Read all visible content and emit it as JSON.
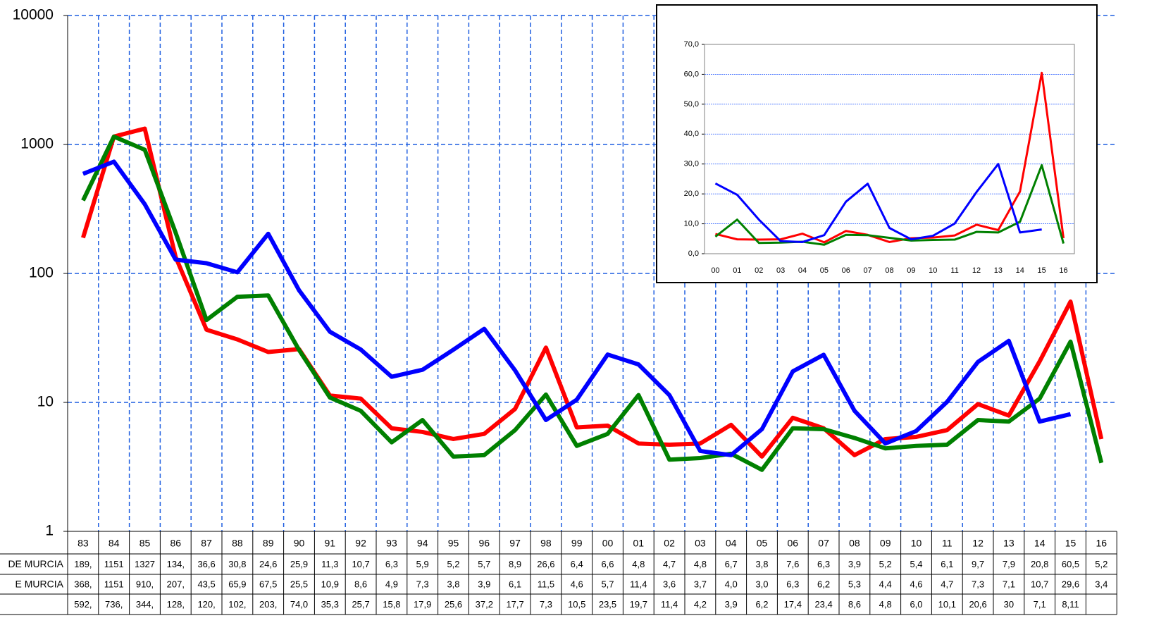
{
  "chart_data": [
    {
      "type": "line",
      "ylog": true,
      "ylim": [
        1,
        10000
      ],
      "yticks": [
        1,
        10,
        100,
        1000,
        10000
      ],
      "grid": true,
      "categories": [
        "83",
        "84",
        "85",
        "86",
        "87",
        "88",
        "89",
        "90",
        "91",
        "92",
        "93",
        "94",
        "95",
        "96",
        "97",
        "98",
        "99",
        "00",
        "01",
        "02",
        "03",
        "04",
        "05",
        "06",
        "07",
        "08",
        "09",
        "10",
        "11",
        "12",
        "13",
        "14",
        "15",
        "16"
      ],
      "series": [
        {
          "name": "DE MURCIA",
          "color": "#ff0000",
          "values": [
            189,
            1151,
            1327,
            134,
            36.6,
            30.8,
            24.6,
            25.9,
            11.3,
            10.7,
            6.3,
            5.9,
            5.2,
            5.7,
            8.9,
            26.6,
            6.4,
            6.6,
            4.8,
            4.7,
            4.8,
            6.7,
            3.8,
            7.6,
            6.3,
            3.9,
            5.2,
            5.4,
            6.1,
            9.7,
            7.9,
            20.8,
            60.5,
            5.2
          ],
          "value_labels": [
            "189,",
            "1151",
            "1327",
            "134,",
            "36,6",
            "30,8",
            "24,6",
            "25,9",
            "11,3",
            "10,7",
            "6,3",
            "5,9",
            "5,2",
            "5,7",
            "8,9",
            "26,6",
            "6,4",
            "6,6",
            "4,8",
            "4,7",
            "4,8",
            "6,7",
            "3,8",
            "7,6",
            "6,3",
            "3,9",
            "5,2",
            "5,4",
            "6,1",
            "9,7",
            "7,9",
            "20,8",
            "60,5",
            "5,2"
          ]
        },
        {
          "name": "E MURCIA",
          "color": "#008000",
          "values": [
            368,
            1151,
            910,
            207,
            43.5,
            65.9,
            67.5,
            25.5,
            10.9,
            8.6,
            4.9,
            7.3,
            3.8,
            3.9,
            6.1,
            11.5,
            4.6,
            5.7,
            11.4,
            3.6,
            3.7,
            4.0,
            3.0,
            6.3,
            6.2,
            5.3,
            4.4,
            4.6,
            4.7,
            7.3,
            7.1,
            10.7,
            29.6,
            3.4
          ],
          "value_labels": [
            "368,",
            "1151",
            "910,",
            "207,",
            "43,5",
            "65,9",
            "67,5",
            "25,5",
            "10,9",
            "8,6",
            "4,9",
            "7,3",
            "3,8",
            "3,9",
            "6,1",
            "11,5",
            "4,6",
            "5,7",
            "11,4",
            "3,6",
            "3,7",
            "4,0",
            "3,0",
            "6,3",
            "6,2",
            "5,3",
            "4,4",
            "4,6",
            "4,7",
            "7,3",
            "7,1",
            "10,7",
            "29,6",
            "3,4"
          ]
        },
        {
          "color": "#0000ff",
          "values": [
            592,
            736,
            344,
            128,
            120,
            102,
            203,
            74.0,
            35.3,
            25.7,
            15.8,
            17.9,
            25.6,
            37.2,
            17.7,
            7.3,
            10.5,
            23.5,
            19.7,
            11.4,
            4.2,
            3.9,
            6.2,
            17.4,
            23.4,
            8.6,
            4.8,
            6.0,
            10.1,
            20.6,
            30,
            7.1,
            8.11,
            null
          ],
          "value_labels": [
            "592,",
            "736,",
            "344,",
            "128,",
            "120,",
            "102,",
            "203,",
            "74,0",
            "35,3",
            "25,7",
            "15,8",
            "17,9",
            "25,6",
            "37,2",
            "17,7",
            "7,3",
            "10,5",
            "23,5",
            "19,7",
            "11,4",
            "4,2",
            "3,9",
            "6,2",
            "17,4",
            "23,4",
            "8,6",
            "4,8",
            "6,0",
            "10,1",
            "20,6",
            "30",
            "7,1",
            "8,11",
            null
          ]
        }
      ]
    },
    {
      "type": "line",
      "ylim": [
        0,
        70
      ],
      "yticks": [
        {
          "value": 0,
          "label": "0,0"
        },
        {
          "value": 10,
          "label": "10,0"
        },
        {
          "value": 20,
          "label": "20,0"
        },
        {
          "value": 30,
          "label": "30,0"
        },
        {
          "value": 40,
          "label": "40,0"
        },
        {
          "value": 50,
          "label": "50,0"
        },
        {
          "value": 60,
          "label": "60,0"
        },
        {
          "value": 70,
          "label": "70,0"
        }
      ],
      "grid": true,
      "categories": [
        "00",
        "01",
        "02",
        "03",
        "04",
        "05",
        "06",
        "07",
        "08",
        "09",
        "10",
        "11",
        "12",
        "13",
        "14",
        "15",
        "16"
      ],
      "series": [
        {
          "color": "#ff0000",
          "values": [
            6.6,
            4.8,
            4.7,
            4.8,
            6.7,
            3.8,
            7.6,
            6.3,
            3.9,
            5.2,
            5.4,
            6.1,
            9.7,
            7.9,
            20.8,
            60.5,
            5.2
          ]
        },
        {
          "color": "#008000",
          "values": [
            5.7,
            11.4,
            3.6,
            3.7,
            4.0,
            3.0,
            6.3,
            6.2,
            5.3,
            4.4,
            4.6,
            4.7,
            7.3,
            7.1,
            10.7,
            29.6,
            3.4
          ]
        },
        {
          "color": "#0000ff",
          "values": [
            23.5,
            19.7,
            11.4,
            4.2,
            3.9,
            6.2,
            17.4,
            23.4,
            8.6,
            4.8,
            6.0,
            10.1,
            20.6,
            30,
            7.1,
            8.11,
            null
          ]
        }
      ]
    }
  ]
}
